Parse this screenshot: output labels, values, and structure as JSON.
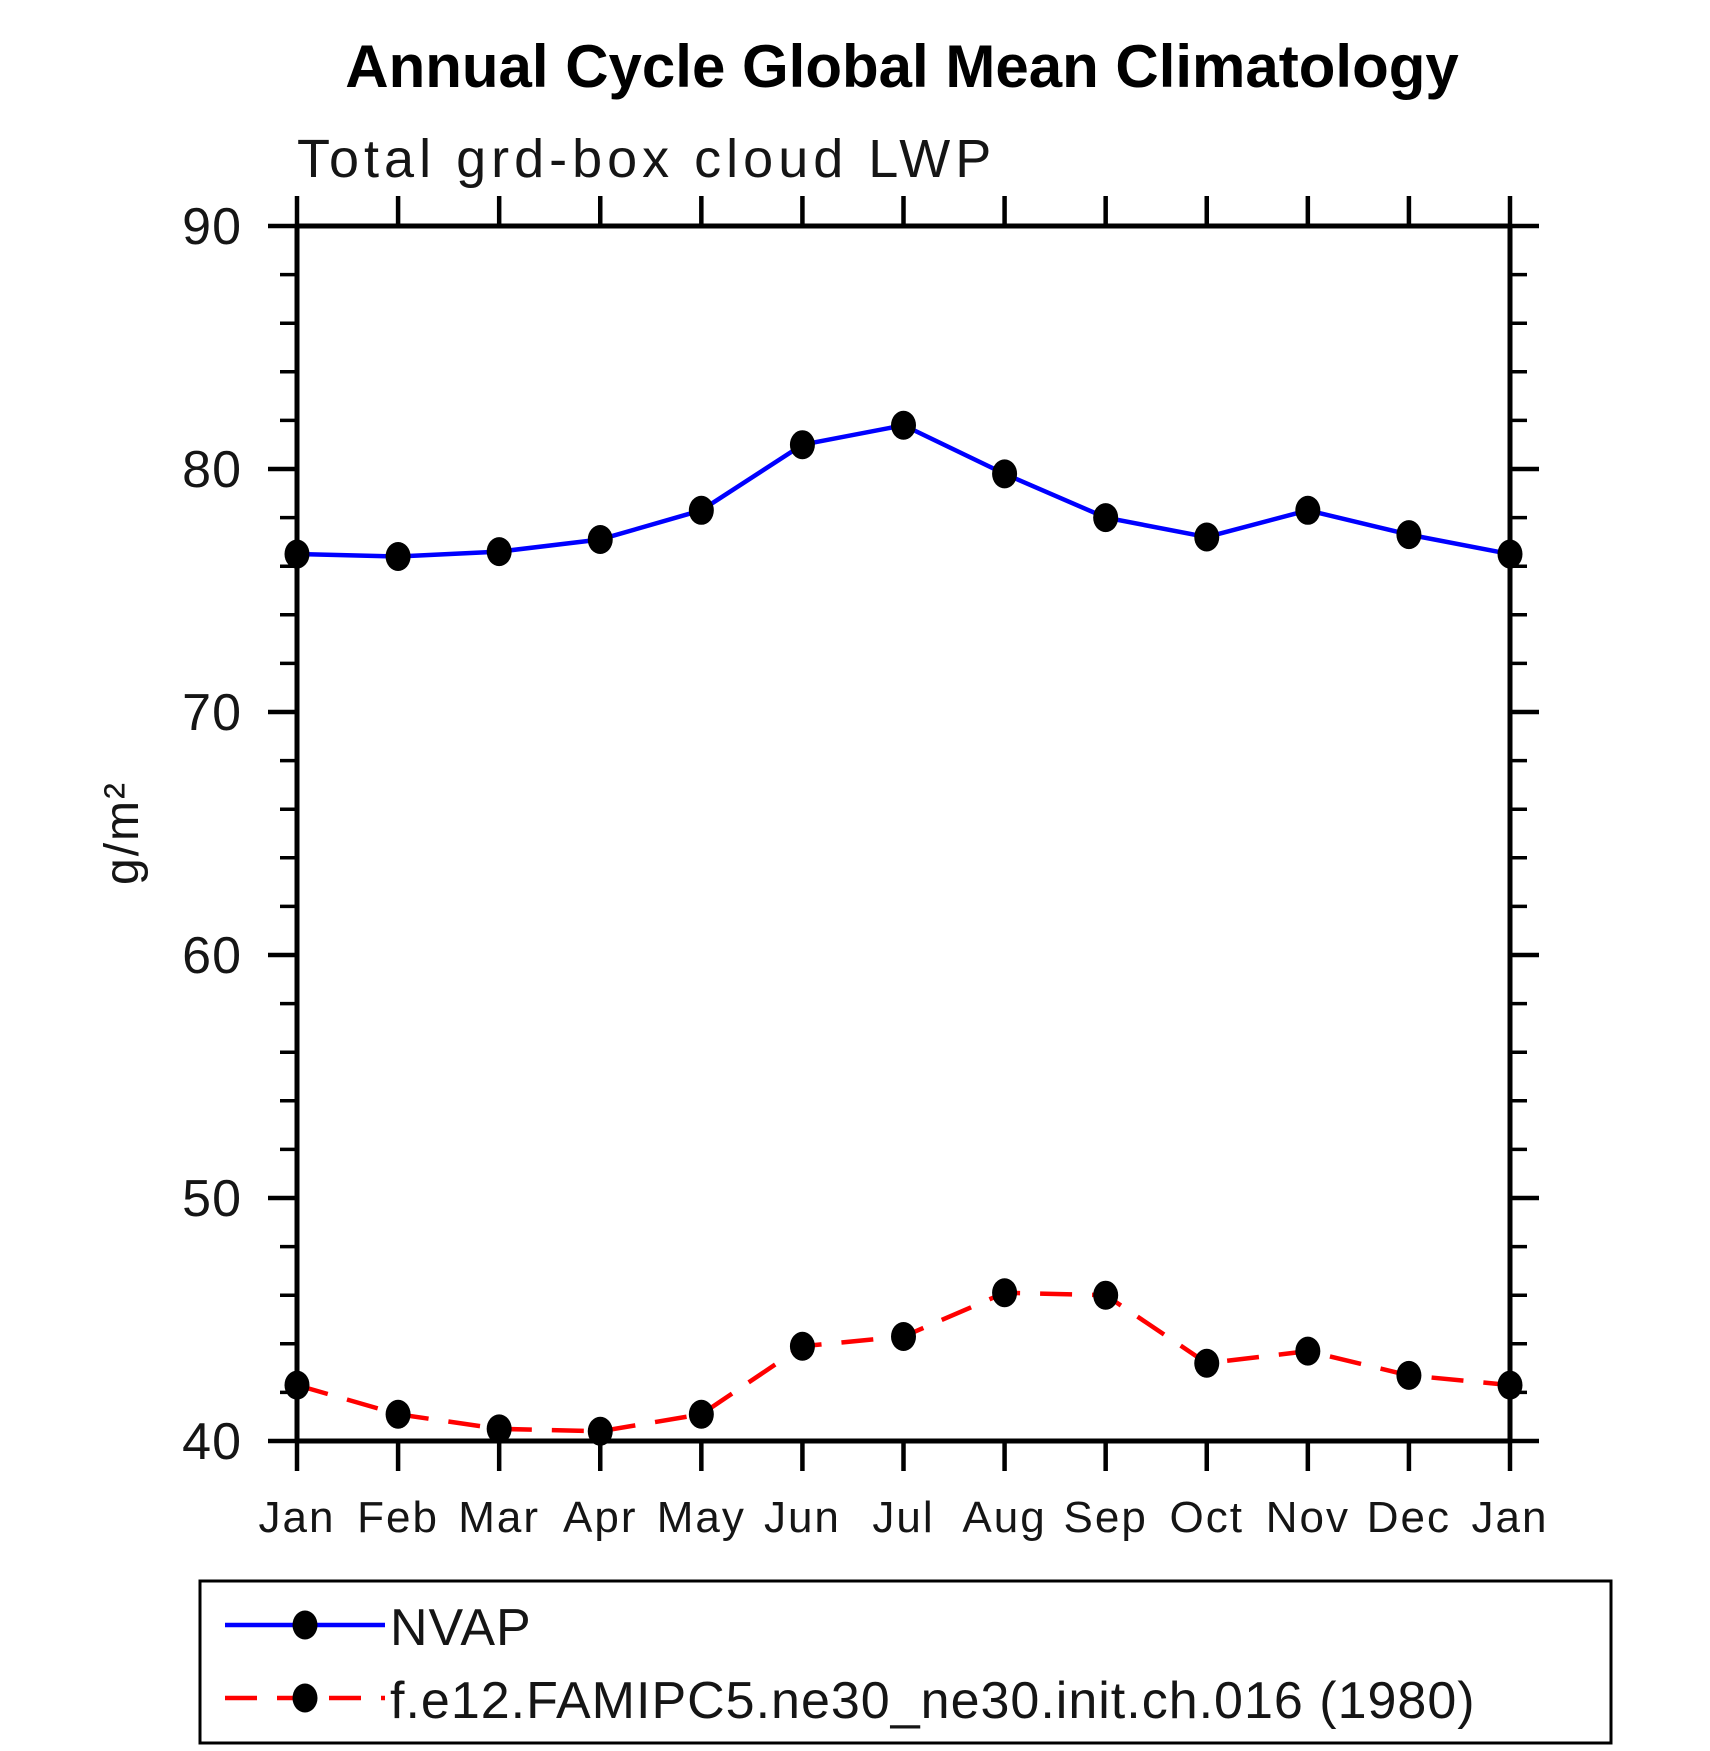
{
  "page": {
    "background": "#ffffff"
  },
  "chart_data": {
    "type": "line",
    "title": "Annual Cycle Global Mean Climatology",
    "subtitle": "Total grd-box cloud LWP",
    "ylabel": "g/m²",
    "xlabel": "",
    "categories": [
      "Jan",
      "Feb",
      "Mar",
      "Apr",
      "May",
      "Jun",
      "Jul",
      "Aug",
      "Sep",
      "Oct",
      "Nov",
      "Dec",
      "Jan"
    ],
    "ylim": [
      40,
      90
    ],
    "yticks_major": [
      40,
      50,
      60,
      70,
      80,
      90
    ],
    "ytick_minor_step": 2,
    "grid": false,
    "legend_position": "bottom-left-box",
    "axis_color": "#000000",
    "series": [
      {
        "name": "NVAP",
        "color": "#0000ff",
        "line_style": "solid",
        "marker": "filled-circle",
        "marker_color": "#000000",
        "values": [
          76.5,
          76.4,
          76.6,
          77.1,
          78.3,
          81.0,
          81.8,
          79.8,
          78.0,
          77.2,
          78.3,
          77.3,
          76.5
        ]
      },
      {
        "name": "f.e12.FAMIPC5.ne30_ne30.init.ch.016 (1980)",
        "color": "#ff0000",
        "line_style": "dashed",
        "marker": "filled-circle",
        "marker_color": "#000000",
        "values": [
          42.3,
          41.1,
          40.5,
          40.4,
          41.1,
          43.9,
          44.3,
          46.1,
          46.0,
          43.2,
          43.7,
          42.7,
          42.3
        ]
      }
    ]
  }
}
